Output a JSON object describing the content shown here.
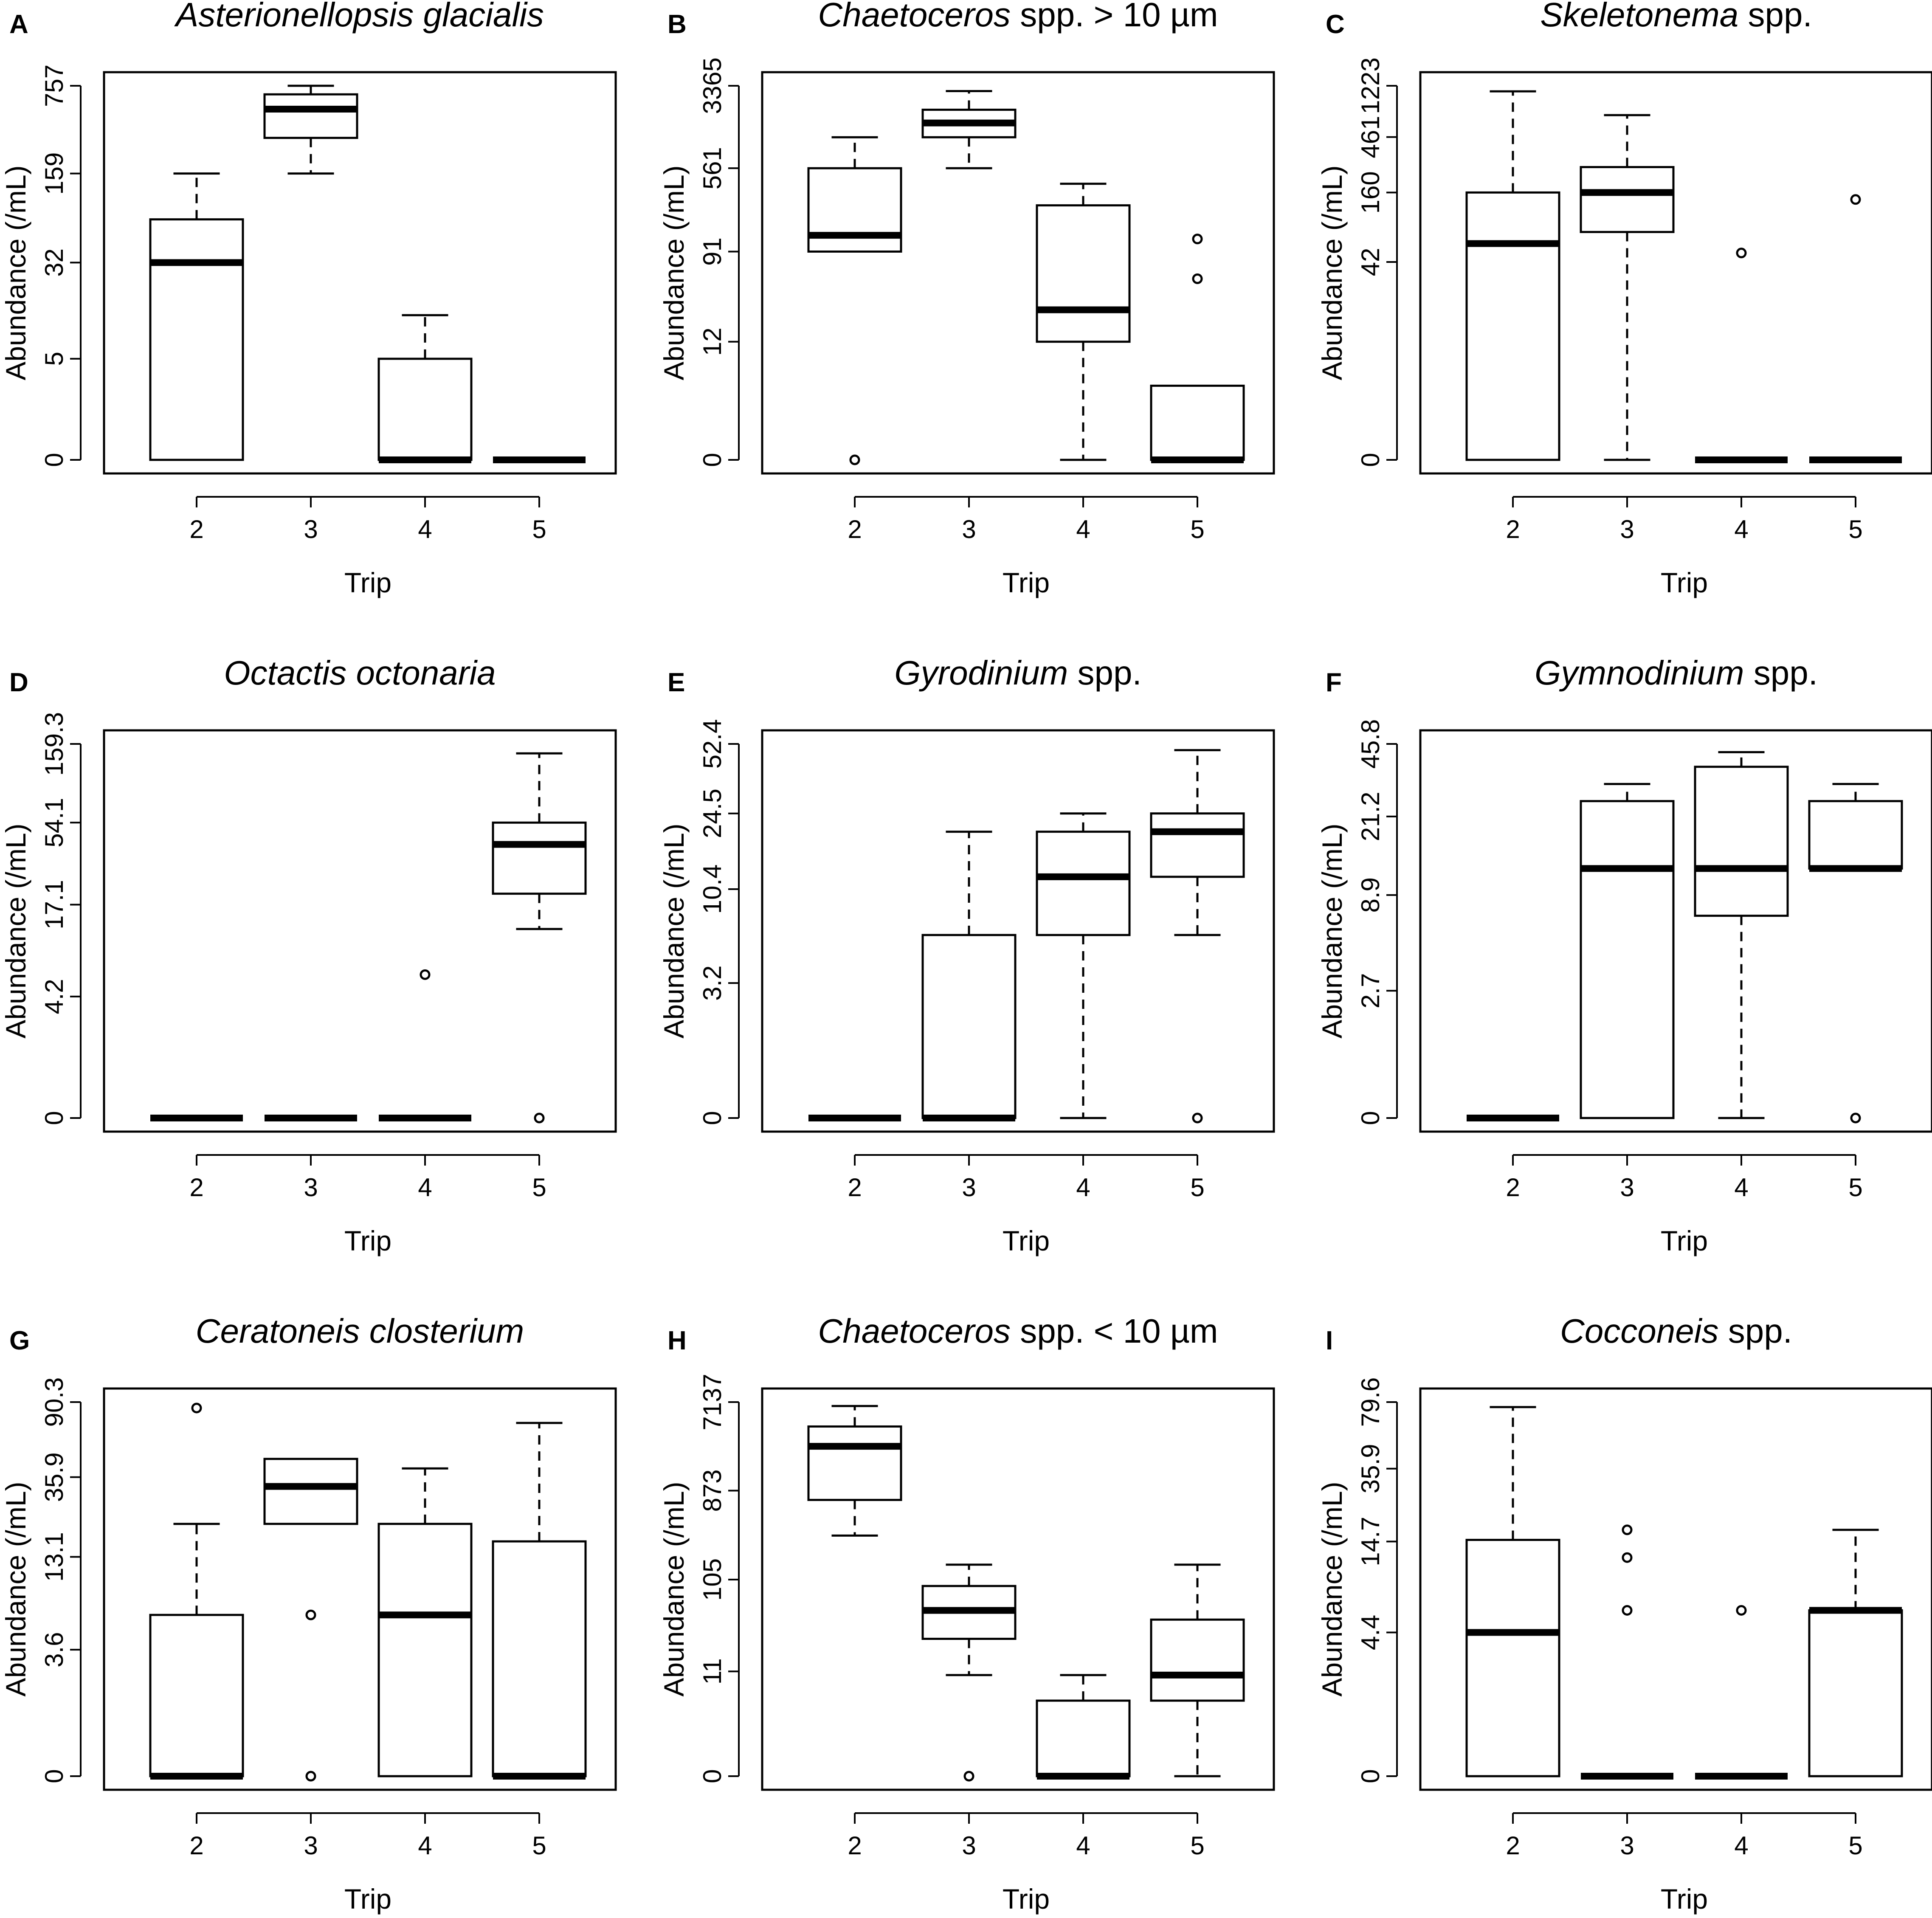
{
  "figure": {
    "caption": ""
  },
  "chart_data": [
    {
      "type": "boxplot",
      "letter": "A",
      "title_parts": [
        {
          "text": "Asterionellopsis glacialis",
          "italic": true
        }
      ],
      "xlabel": "Trip",
      "ylabel": "Abundance (/mL)",
      "y_scale": "log",
      "y_ticks": [
        "0",
        "5",
        "32",
        "159",
        "757"
      ],
      "categories": [
        "2",
        "3",
        "4",
        "5"
      ],
      "boxes": [
        {
          "trip": "2",
          "min": 0,
          "q1": 0,
          "median": 32,
          "q3": 70,
          "max": 159,
          "outliers": []
        },
        {
          "trip": "3",
          "min": 159,
          "q1": 300,
          "median": 500,
          "q3": 650,
          "max": 757,
          "outliers": []
        },
        {
          "trip": "4",
          "min": 0,
          "q1": 0,
          "median": 0,
          "q3": 5,
          "max": 12,
          "outliers": []
        },
        {
          "trip": "5",
          "min": 0,
          "q1": 0,
          "median": 0,
          "q3": 0,
          "max": 0,
          "outliers": []
        }
      ]
    },
    {
      "type": "boxplot",
      "letter": "B",
      "title_parts": [
        {
          "text": "Chaetoceros",
          "italic": true
        },
        {
          "text": " spp. > 10 µm",
          "italic": false
        }
      ],
      "xlabel": "Trip",
      "ylabel": "Abundance (/mL)",
      "y_scale": "log",
      "y_ticks": [
        "0",
        "12",
        "91",
        "561",
        "3365"
      ],
      "categories": [
        "2",
        "3",
        "4",
        "5"
      ],
      "boxes": [
        {
          "trip": "2",
          "min": 91,
          "q1": 91,
          "median": 130,
          "q3": 561,
          "max": 1100,
          "outliers": [
            0
          ]
        },
        {
          "trip": "3",
          "min": 561,
          "q1": 1100,
          "median": 1500,
          "q3": 2000,
          "max": 3000,
          "outliers": []
        },
        {
          "trip": "4",
          "min": 0,
          "q1": 12,
          "median": 25,
          "q3": 250,
          "max": 400,
          "outliers": []
        },
        {
          "trip": "5",
          "min": 0,
          "q1": 0,
          "median": 0,
          "q3": 4,
          "max": 4,
          "outliers": [
            50,
            120
          ]
        }
      ]
    },
    {
      "type": "boxplot",
      "letter": "C",
      "title_parts": [
        {
          "text": "Skeletonema",
          "italic": true
        },
        {
          "text": " spp.",
          "italic": false
        }
      ],
      "xlabel": "Trip",
      "ylabel": "Abundance (/mL)",
      "y_scale": "log",
      "y_ticks": [
        "0",
        "42",
        "160",
        "461",
        "1223"
      ],
      "categories": [
        "2",
        "3",
        "4",
        "5"
      ],
      "boxes": [
        {
          "trip": "2",
          "min": 0,
          "q1": 0,
          "median": 60,
          "q3": 160,
          "max": 1100,
          "outliers": []
        },
        {
          "trip": "3",
          "min": 0,
          "q1": 75,
          "median": 160,
          "q3": 260,
          "max": 700,
          "outliers": []
        },
        {
          "trip": "4",
          "min": 0,
          "q1": 0,
          "median": 0,
          "q3": 0,
          "max": 0,
          "outliers": [
            50
          ]
        },
        {
          "trip": "5",
          "min": 0,
          "q1": 0,
          "median": 0,
          "q3": 0,
          "max": 0,
          "outliers": [
            140
          ]
        }
      ]
    },
    {
      "type": "boxplot",
      "letter": "D",
      "title_parts": [
        {
          "text": "Octactis octonaria",
          "italic": true
        }
      ],
      "xlabel": "Trip",
      "ylabel": "Abundance (/mL)",
      "y_scale": "log",
      "y_ticks": [
        "0",
        "4.2",
        "17.1",
        "54.1",
        "159.3"
      ],
      "categories": [
        "2",
        "3",
        "4",
        "5"
      ],
      "boxes": [
        {
          "trip": "2",
          "min": 0,
          "q1": 0,
          "median": 0,
          "q3": 0,
          "max": 0,
          "outliers": []
        },
        {
          "trip": "3",
          "min": 0,
          "q1": 0,
          "median": 0,
          "q3": 0,
          "max": 0,
          "outliers": []
        },
        {
          "trip": "4",
          "min": 0,
          "q1": 0,
          "median": 0,
          "q3": 0,
          "max": 0,
          "outliers": [
            6
          ]
        },
        {
          "trip": "5",
          "min": 12,
          "q1": 20,
          "median": 40,
          "q3": 54.1,
          "max": 140,
          "outliers": [
            0
          ]
        }
      ]
    },
    {
      "type": "boxplot",
      "letter": "E",
      "title_parts": [
        {
          "text": "Gyrodinium",
          "italic": true
        },
        {
          "text": " spp.",
          "italic": false
        }
      ],
      "xlabel": "Trip",
      "ylabel": "Abundance (/mL)",
      "y_scale": "log",
      "y_ticks": [
        "0",
        "3.2",
        "10.4",
        "24.5",
        "52.4"
      ],
      "categories": [
        "2",
        "3",
        "4",
        "5"
      ],
      "boxes": [
        {
          "trip": "2",
          "min": 0,
          "q1": 0,
          "median": 0,
          "q3": 0,
          "max": 0,
          "outliers": []
        },
        {
          "trip": "3",
          "min": 0,
          "q1": 0,
          "median": 0,
          "q3": 6,
          "max": 20,
          "outliers": []
        },
        {
          "trip": "4",
          "min": 0,
          "q1": 6,
          "median": 12,
          "q3": 20,
          "max": 24.5,
          "outliers": []
        },
        {
          "trip": "5",
          "min": 6,
          "q1": 12,
          "median": 20,
          "q3": 24.5,
          "max": 49,
          "outliers": [
            0
          ]
        }
      ]
    },
    {
      "type": "boxplot",
      "letter": "F",
      "title_parts": [
        {
          "text": "Gymnodinium",
          "italic": true
        },
        {
          "text": " spp.",
          "italic": false
        }
      ],
      "xlabel": "Trip",
      "ylabel": "Abundance (/mL)",
      "y_scale": "log",
      "y_ticks": [
        "0",
        "2.7",
        "8.9",
        "21.2",
        "45.8"
      ],
      "categories": [
        "2",
        "3",
        "4",
        "5"
      ],
      "boxes": [
        {
          "trip": "2",
          "min": 0,
          "q1": 0,
          "median": 0,
          "q3": 0,
          "max": 0,
          "outliers": []
        },
        {
          "trip": "3",
          "min": 0,
          "q1": 0,
          "median": 12,
          "q3": 25,
          "max": 30,
          "outliers": []
        },
        {
          "trip": "4",
          "min": 0,
          "q1": 7,
          "median": 12,
          "q3": 36,
          "max": 42,
          "outliers": []
        },
        {
          "trip": "5",
          "min": 12,
          "q1": 12,
          "median": 12,
          "q3": 25,
          "max": 30,
          "outliers": [
            0
          ]
        }
      ]
    },
    {
      "type": "boxplot",
      "letter": "G",
      "title_parts": [
        {
          "text": "Ceratoneis closterium",
          "italic": true
        }
      ],
      "xlabel": "Trip",
      "ylabel": "Abundance (/mL)",
      "y_scale": "log",
      "y_ticks": [
        "0",
        "3.6",
        "13.1",
        "35.9",
        "90.3"
      ],
      "categories": [
        "2",
        "3",
        "4",
        "5"
      ],
      "boxes": [
        {
          "trip": "2",
          "min": 0,
          "q1": 0,
          "median": 0,
          "q3": 6,
          "max": 20,
          "outliers": [
            84
          ]
        },
        {
          "trip": "3",
          "min": 20,
          "q1": 20,
          "median": 32,
          "q3": 45,
          "max": 45,
          "outliers": [
            6,
            0
          ]
        },
        {
          "trip": "4",
          "min": 0,
          "q1": 0,
          "median": 6,
          "q3": 20,
          "max": 40,
          "outliers": []
        },
        {
          "trip": "5",
          "min": 0,
          "q1": 0,
          "median": 0,
          "q3": 16,
          "max": 70,
          "outliers": []
        }
      ]
    },
    {
      "type": "boxplot",
      "letter": "H",
      "title_parts": [
        {
          "text": "Chaetoceros",
          "italic": true
        },
        {
          "text": " spp. < 10 µm",
          "italic": false
        }
      ],
      "xlabel": "Trip",
      "ylabel": "Abundance (/mL)",
      "y_scale": "log",
      "y_ticks": [
        "0",
        "11",
        "105",
        "873",
        "7137"
      ],
      "categories": [
        "2",
        "3",
        "4",
        "5"
      ],
      "boxes": [
        {
          "trip": "2",
          "min": 300,
          "q1": 700,
          "median": 2500,
          "q3": 4000,
          "max": 6500,
          "outliers": []
        },
        {
          "trip": "3",
          "min": 10,
          "q1": 25,
          "median": 50,
          "q3": 90,
          "max": 150,
          "outliers": [
            0
          ]
        },
        {
          "trip": "4",
          "min": 0,
          "q1": 0,
          "median": 0,
          "q3": 5,
          "max": 10,
          "outliers": []
        },
        {
          "trip": "5",
          "min": 0,
          "q1": 5,
          "median": 10,
          "q3": 40,
          "max": 150,
          "outliers": []
        }
      ]
    },
    {
      "type": "boxplot",
      "letter": "I",
      "title_parts": [
        {
          "text": "Cocconeis",
          "italic": true
        },
        {
          "text": " spp.",
          "italic": false
        }
      ],
      "xlabel": "Trip",
      "ylabel": "Abundance (/mL)",
      "y_scale": "log",
      "y_ticks": [
        "0",
        "4.4",
        "14.7",
        "35.9",
        "79.6"
      ],
      "categories": [
        "2",
        "3",
        "4",
        "5"
      ],
      "boxes": [
        {
          "trip": "2",
          "min": 0,
          "q1": 0,
          "median": 4.4,
          "q3": 15,
          "max": 75,
          "outliers": []
        },
        {
          "trip": "3",
          "min": 0,
          "q1": 0,
          "median": 0,
          "q3": 0,
          "max": 0,
          "outliers": [
            6,
            12,
            17
          ]
        },
        {
          "trip": "4",
          "min": 0,
          "q1": 0,
          "median": 0,
          "q3": 0,
          "max": 0,
          "outliers": [
            6
          ]
        },
        {
          "trip": "5",
          "min": 0,
          "q1": 0,
          "median": 6,
          "q3": 6,
          "max": 17,
          "outliers": []
        }
      ]
    }
  ]
}
